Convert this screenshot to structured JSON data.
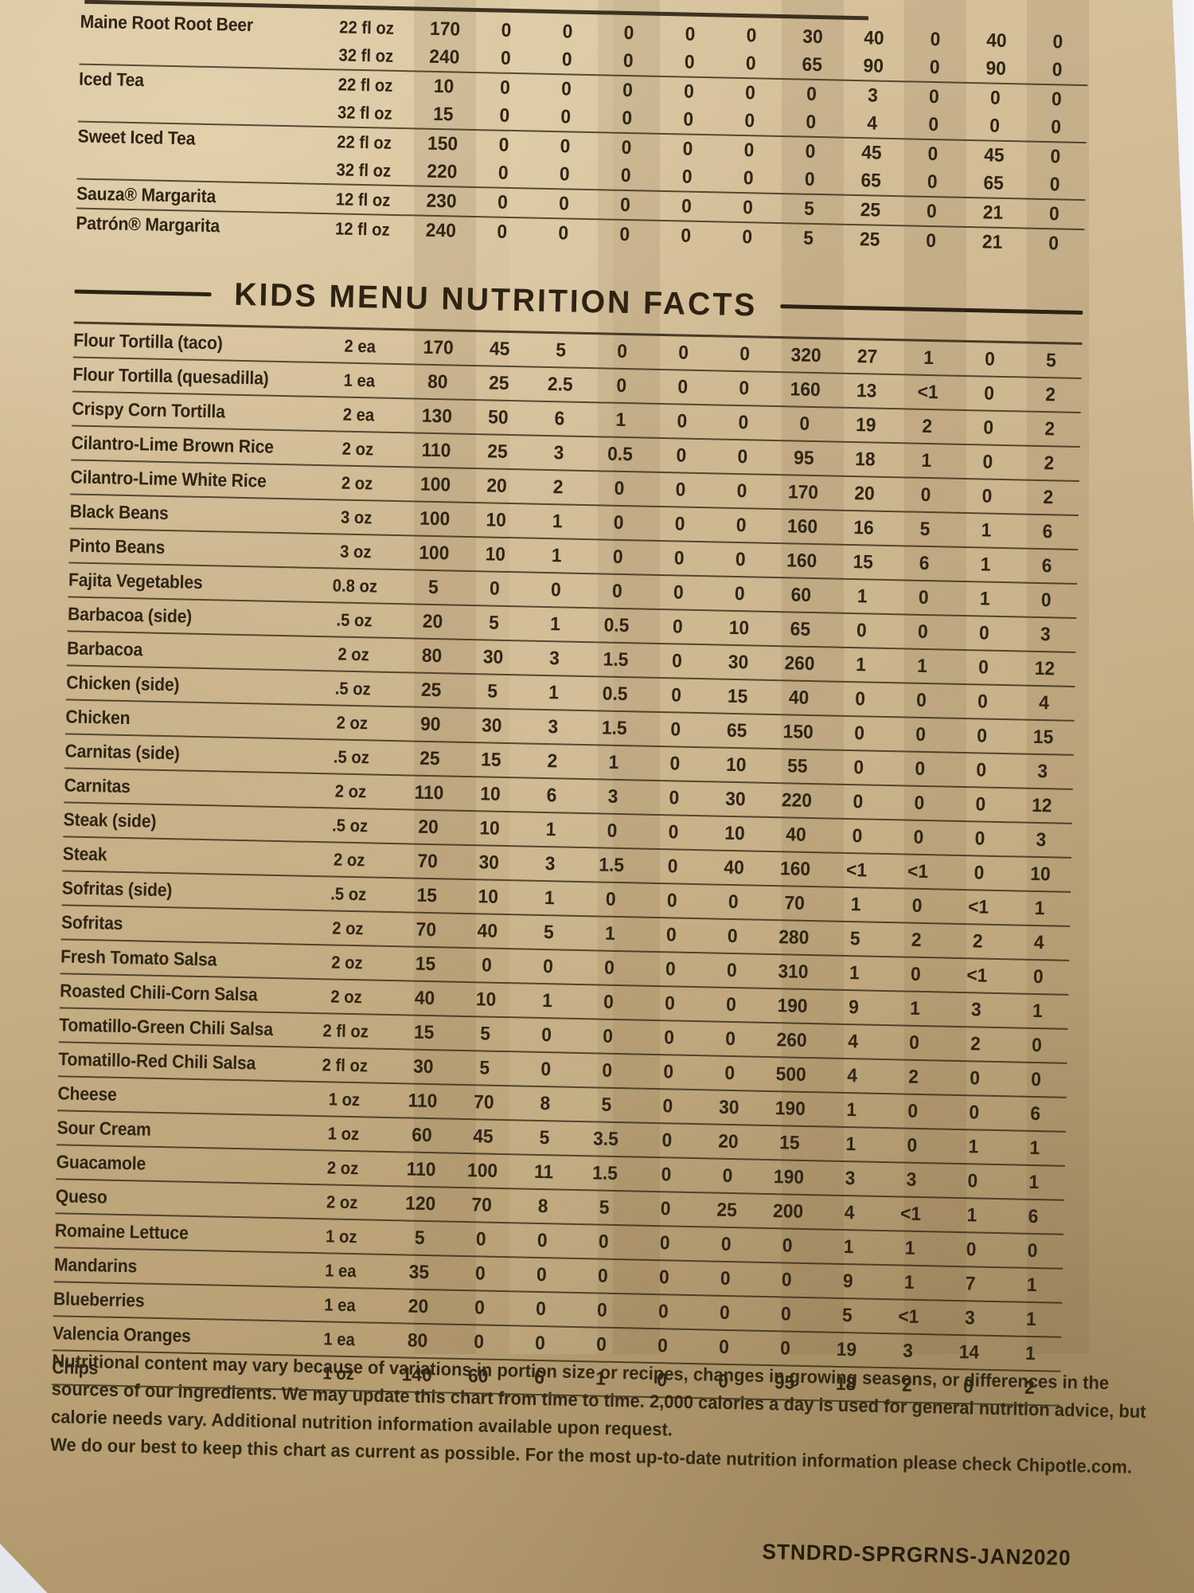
{
  "photo": {
    "paper_color": "#c9b28a",
    "background_color": "#e9ecf1",
    "ink_color": "#2e2515"
  },
  "beverage_table": {
    "rows": [
      {
        "name": "Maine Root Root Beer",
        "serving": "22 fl oz",
        "values": [
          "170",
          "0",
          "0",
          "0",
          "0",
          "0",
          "30",
          "40",
          "0",
          "40",
          "0"
        ],
        "rule": false
      },
      {
        "name": "",
        "serving": "32 fl oz",
        "values": [
          "240",
          "0",
          "0",
          "0",
          "0",
          "0",
          "65",
          "90",
          "0",
          "90",
          "0"
        ],
        "rule": true
      },
      {
        "name": "Iced Tea",
        "serving": "22 fl oz",
        "values": [
          "10",
          "0",
          "0",
          "0",
          "0",
          "0",
          "0",
          "3",
          "0",
          "0",
          "0"
        ],
        "rule": false
      },
      {
        "name": "",
        "serving": "32 fl oz",
        "values": [
          "15",
          "0",
          "0",
          "0",
          "0",
          "0",
          "0",
          "4",
          "0",
          "0",
          "0"
        ],
        "rule": true
      },
      {
        "name": "Sweet Iced Tea",
        "serving": "22 fl oz",
        "values": [
          "150",
          "0",
          "0",
          "0",
          "0",
          "0",
          "0",
          "45",
          "0",
          "45",
          "0"
        ],
        "rule": false
      },
      {
        "name": "",
        "serving": "32 fl oz",
        "values": [
          "220",
          "0",
          "0",
          "0",
          "0",
          "0",
          "0",
          "65",
          "0",
          "65",
          "0"
        ],
        "rule": true
      },
      {
        "name": "Sauza® Margarita",
        "serving": "12 fl oz",
        "values": [
          "230",
          "0",
          "0",
          "0",
          "0",
          "0",
          "5",
          "25",
          "0",
          "21",
          "0"
        ],
        "rule": true
      },
      {
        "name": "Patrón® Margarita",
        "serving": "12 fl oz",
        "values": [
          "240",
          "0",
          "0",
          "0",
          "0",
          "0",
          "5",
          "25",
          "0",
          "21",
          "0"
        ],
        "rule": false
      }
    ]
  },
  "kids_section": {
    "title": "KIDS MENU NUTRITION FACTS"
  },
  "kids_table": {
    "rows": [
      {
        "name": "Flour Tortilla (taco)",
        "serving": "2 ea",
        "values": [
          "170",
          "45",
          "5",
          "0",
          "0",
          "0",
          "320",
          "27",
          "1",
          "0",
          "5"
        ]
      },
      {
        "name": "Flour Tortilla (quesadilla)",
        "serving": "1 ea",
        "values": [
          "80",
          "25",
          "2.5",
          "0",
          "0",
          "0",
          "160",
          "13",
          "<1",
          "0",
          "2"
        ]
      },
      {
        "name": "Crispy Corn Tortilla",
        "serving": "2 ea",
        "values": [
          "130",
          "50",
          "6",
          "1",
          "0",
          "0",
          "0",
          "19",
          "2",
          "0",
          "2"
        ]
      },
      {
        "name": "Cilantro-Lime Brown Rice",
        "serving": "2 oz",
        "values": [
          "110",
          "25",
          "3",
          "0.5",
          "0",
          "0",
          "95",
          "18",
          "1",
          "0",
          "2"
        ]
      },
      {
        "name": "Cilantro-Lime White Rice",
        "serving": "2 oz",
        "values": [
          "100",
          "20",
          "2",
          "0",
          "0",
          "0",
          "170",
          "20",
          "0",
          "0",
          "2"
        ]
      },
      {
        "name": "Black Beans",
        "serving": "3 oz",
        "values": [
          "100",
          "10",
          "1",
          "0",
          "0",
          "0",
          "160",
          "16",
          "5",
          "1",
          "6"
        ]
      },
      {
        "name": "Pinto Beans",
        "serving": "3 oz",
        "values": [
          "100",
          "10",
          "1",
          "0",
          "0",
          "0",
          "160",
          "15",
          "6",
          "1",
          "6"
        ]
      },
      {
        "name": "Fajita Vegetables",
        "serving": "0.8 oz",
        "values": [
          "5",
          "0",
          "0",
          "0",
          "0",
          "0",
          "60",
          "1",
          "0",
          "1",
          "0"
        ]
      },
      {
        "name": "Barbacoa (side)",
        "serving": ".5 oz",
        "values": [
          "20",
          "5",
          "1",
          "0.5",
          "0",
          "10",
          "65",
          "0",
          "0",
          "0",
          "3"
        ]
      },
      {
        "name": "Barbacoa",
        "serving": "2 oz",
        "values": [
          "80",
          "30",
          "3",
          "1.5",
          "0",
          "30",
          "260",
          "1",
          "1",
          "0",
          "12"
        ]
      },
      {
        "name": "Chicken (side)",
        "serving": ".5 oz",
        "values": [
          "25",
          "5",
          "1",
          "0.5",
          "0",
          "15",
          "40",
          "0",
          "0",
          "0",
          "4"
        ]
      },
      {
        "name": "Chicken",
        "serving": "2 oz",
        "values": [
          "90",
          "30",
          "3",
          "1.5",
          "0",
          "65",
          "150",
          "0",
          "0",
          "0",
          "15"
        ]
      },
      {
        "name": "Carnitas (side)",
        "serving": ".5 oz",
        "values": [
          "25",
          "15",
          "2",
          "1",
          "0",
          "10",
          "55",
          "0",
          "0",
          "0",
          "3"
        ]
      },
      {
        "name": "Carnitas",
        "serving": "2 oz",
        "values": [
          "110",
          "10",
          "6",
          "3",
          "0",
          "30",
          "220",
          "0",
          "0",
          "0",
          "12"
        ]
      },
      {
        "name": "Steak (side)",
        "serving": ".5 oz",
        "values": [
          "20",
          "10",
          "1",
          "0",
          "0",
          "10",
          "40",
          "0",
          "0",
          "0",
          "3"
        ]
      },
      {
        "name": "Steak",
        "serving": "2 oz",
        "values": [
          "70",
          "30",
          "3",
          "1.5",
          "0",
          "40",
          "160",
          "<1",
          "<1",
          "0",
          "10"
        ]
      },
      {
        "name": "Sofritas (side)",
        "serving": ".5 oz",
        "values": [
          "15",
          "10",
          "1",
          "0",
          "0",
          "0",
          "70",
          "1",
          "0",
          "<1",
          "1"
        ]
      },
      {
        "name": "Sofritas",
        "serving": "2 oz",
        "values": [
          "70",
          "40",
          "5",
          "1",
          "0",
          "0",
          "280",
          "5",
          "2",
          "2",
          "4"
        ]
      },
      {
        "name": "Fresh Tomato Salsa",
        "serving": "2 oz",
        "values": [
          "15",
          "0",
          "0",
          "0",
          "0",
          "0",
          "310",
          "1",
          "0",
          "<1",
          "0"
        ]
      },
      {
        "name": "Roasted Chili-Corn Salsa",
        "serving": "2 oz",
        "values": [
          "40",
          "10",
          "1",
          "0",
          "0",
          "0",
          "190",
          "9",
          "1",
          "3",
          "1"
        ]
      },
      {
        "name": "Tomatillo-Green Chili Salsa",
        "serving": "2 fl oz",
        "values": [
          "15",
          "5",
          "0",
          "0",
          "0",
          "0",
          "260",
          "4",
          "0",
          "2",
          "0"
        ]
      },
      {
        "name": "Tomatillo-Red Chili Salsa",
        "serving": "2 fl oz",
        "values": [
          "30",
          "5",
          "0",
          "0",
          "0",
          "0",
          "500",
          "4",
          "2",
          "0",
          "0"
        ]
      },
      {
        "name": "Cheese",
        "serving": "1 oz",
        "values": [
          "110",
          "70",
          "8",
          "5",
          "0",
          "30",
          "190",
          "1",
          "0",
          "0",
          "6"
        ]
      },
      {
        "name": "Sour Cream",
        "serving": "1 oz",
        "values": [
          "60",
          "45",
          "5",
          "3.5",
          "0",
          "20",
          "15",
          "1",
          "0",
          "1",
          "1"
        ]
      },
      {
        "name": "Guacamole",
        "serving": "2 oz",
        "values": [
          "110",
          "100",
          "11",
          "1.5",
          "0",
          "0",
          "190",
          "3",
          "3",
          "0",
          "1"
        ]
      },
      {
        "name": "Queso",
        "serving": "2 oz",
        "values": [
          "120",
          "70",
          "8",
          "5",
          "0",
          "25",
          "200",
          "4",
          "<1",
          "1",
          "6"
        ]
      },
      {
        "name": "Romaine Lettuce",
        "serving": "1 oz",
        "values": [
          "5",
          "0",
          "0",
          "0",
          "0",
          "0",
          "0",
          "1",
          "1",
          "0",
          "0"
        ]
      },
      {
        "name": "Mandarins",
        "serving": "1 ea",
        "values": [
          "35",
          "0",
          "0",
          "0",
          "0",
          "0",
          "0",
          "9",
          "1",
          "7",
          "1"
        ]
      },
      {
        "name": "Blueberries",
        "serving": "1 ea",
        "values": [
          "20",
          "0",
          "0",
          "0",
          "0",
          "0",
          "0",
          "5",
          "<1",
          "3",
          "1"
        ]
      },
      {
        "name": "Valencia Oranges",
        "serving": "1 ea",
        "values": [
          "80",
          "0",
          "0",
          "0",
          "0",
          "0",
          "0",
          "19",
          "3",
          "14",
          "1"
        ]
      },
      {
        "name": "Chips",
        "serving": "1 oz",
        "values": [
          "140",
          "60",
          "6",
          "1",
          "0",
          "0",
          "95",
          "18",
          "2",
          "0",
          "2"
        ]
      }
    ]
  },
  "disclaimer": {
    "lines": [
      "Nutritional content may vary because of variations in portion size or recipes, changes in growing seasons, or differences in the",
      "sources of our ingredients. We may update this chart from time to time. 2,000 calories a day is used for general nutrition advice, but",
      "calorie needs vary. Additional nutrition information available upon request.",
      "We do our best to keep this chart as current as possible. For the most up-to-date nutrition information please check Chipotle.com."
    ]
  },
  "footer": {
    "code": "STNDRD-SPRGRNS-JAN2020"
  }
}
